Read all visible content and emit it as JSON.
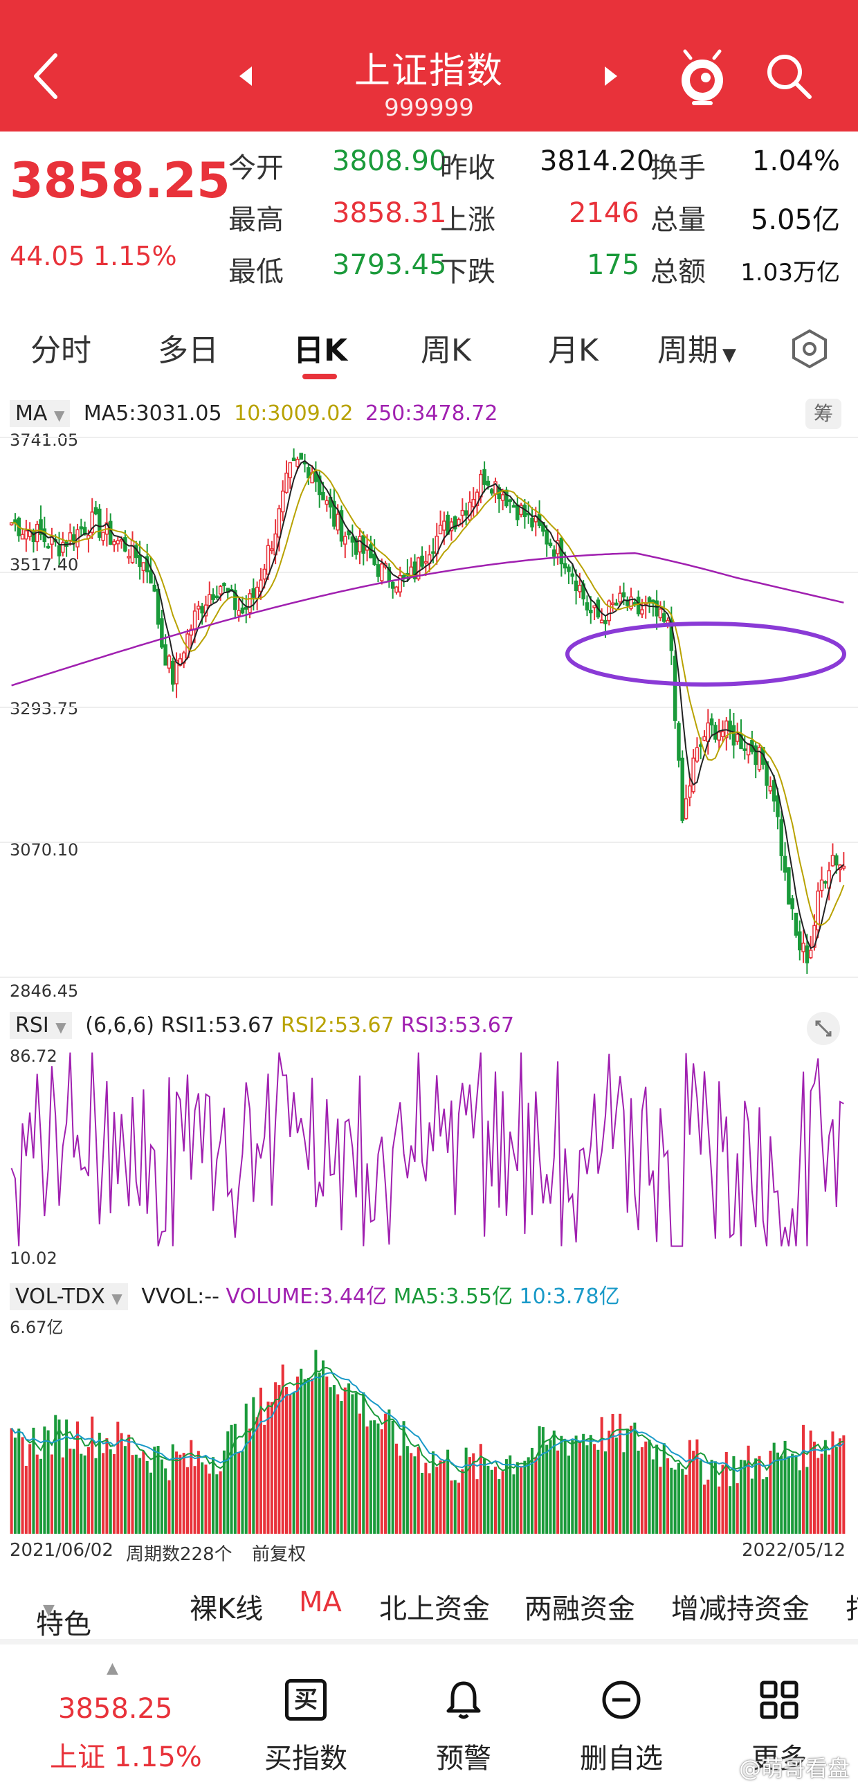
{
  "header": {
    "title": "上证指数",
    "code": "999999"
  },
  "quote": {
    "price": "3858.25",
    "change": "44.05 1.15%",
    "rows": [
      {
        "l1": "今开",
        "v1": "3808.90",
        "l2": "昨收",
        "v2": "3814.20",
        "l3": "换手",
        "v3": "1.04%"
      },
      {
        "l1": "最高",
        "v1": "3858.31",
        "l2": "上涨",
        "v2": "2146",
        "l3": "总量",
        "v3": "5.05亿"
      },
      {
        "l1": "最低",
        "v1": "3793.45",
        "l2": "下跌",
        "v2": "175",
        "l3": "总额",
        "v3": "1.03万亿"
      }
    ]
  },
  "tabs": [
    "分时",
    "多日",
    "日K",
    "周K",
    "月K",
    "周期"
  ],
  "kline": {
    "selector": "MA",
    "ma5": "MA5:3031.05",
    "ma10": "10:3009.02",
    "ma250": "250:3478.72",
    "chip_btn": "筹",
    "y_labels": [
      "3741.05",
      "3517.40",
      "3293.75",
      "3070.10",
      "2846.45"
    ],
    "colors": {
      "up": "#e8323a",
      "down": "#1a9a3a",
      "ma5": "#222222",
      "ma10": "#b8a200",
      "ma250": "#a020b0",
      "highlight": "#8a3ad6"
    }
  },
  "rsi": {
    "selector": "RSI",
    "params": "(6,6,6)",
    "rsi1": "RSI1:53.67",
    "rsi2": "RSI2:53.67",
    "rsi3": "RSI3:53.67",
    "y_max": "86.72",
    "y_min": "10.02"
  },
  "vol": {
    "selector": "VOL-TDX",
    "vvol": "VVOL:--",
    "volume": "VOLUME:3.44亿",
    "ma5": "MA5:3.55亿",
    "ma10": "10:3.78亿",
    "y_max": "6.67亿"
  },
  "footer": {
    "start_date": "2021/06/02",
    "period_count": "周期数228个",
    "adjust": "前复权",
    "end_date": "2022/05/12"
  },
  "indicator_bar": [
    "特色",
    "裸K线",
    "MA",
    "北上资金",
    "两融资金",
    "增减持资金",
    "打"
  ],
  "bottom_nav": {
    "price": "3858.25",
    "name_change": "上证 1.15%",
    "items": [
      "买指数",
      "预警",
      "删自选",
      "更多"
    ],
    "buy_icon_text": "买"
  },
  "watermark": "@萌哥看盘",
  "chart_data": [
    {
      "type": "candlestick",
      "title": "",
      "x_start": "2021/06/02",
      "x_end": "2022/05/12",
      "ylim": [
        2846.45,
        3741.05
      ],
      "y_ticks": [
        3741.05,
        3517.4,
        3293.75,
        3070.1,
        2846.45
      ],
      "series": [
        {
          "name": "MA5",
          "last": 3031.05
        },
        {
          "name": "10",
          "last": 3009.02
        },
        {
          "name": "250",
          "last": 3478.72
        }
      ],
      "close_path_approx": [
        3600,
        3590,
        3585,
        3570,
        3560,
        3575,
        3590,
        3600,
        3585,
        3570,
        3560,
        3540,
        3520,
        3400,
        3340,
        3400,
        3450,
        3480,
        3500,
        3470,
        3450,
        3480,
        3540,
        3600,
        3680,
        3700,
        3690,
        3640,
        3600,
        3580,
        3560,
        3540,
        3520,
        3510,
        3500,
        3520,
        3560,
        3580,
        3600,
        3620,
        3650,
        3680,
        3660,
        3640,
        3620,
        3600,
        3580,
        3560,
        3540,
        3500,
        3450,
        3440,
        3460,
        3470,
        3450,
        3460,
        3440,
        3420,
        3100,
        3200,
        3250,
        3260,
        3250,
        3240,
        3230,
        3200,
        3150,
        3000,
        2900,
        2880,
        3000,
        3050,
        3030
      ]
    },
    {
      "type": "line",
      "title": "RSI",
      "ylim": [
        10.02,
        86.72
      ],
      "series": [
        {
          "name": "RSI1",
          "last": 53.67
        },
        {
          "name": "RSI2",
          "last": 53.67
        },
        {
          "name": "RSI3",
          "last": 53.67
        }
      ]
    },
    {
      "type": "bar",
      "title": "VOL-TDX",
      "ylim": [
        0,
        6.67
      ],
      "series": [
        {
          "name": "VOLUME",
          "last": 3.44
        },
        {
          "name": "MA5",
          "last": 3.55
        },
        {
          "name": "10",
          "last": 3.78
        }
      ]
    }
  ]
}
